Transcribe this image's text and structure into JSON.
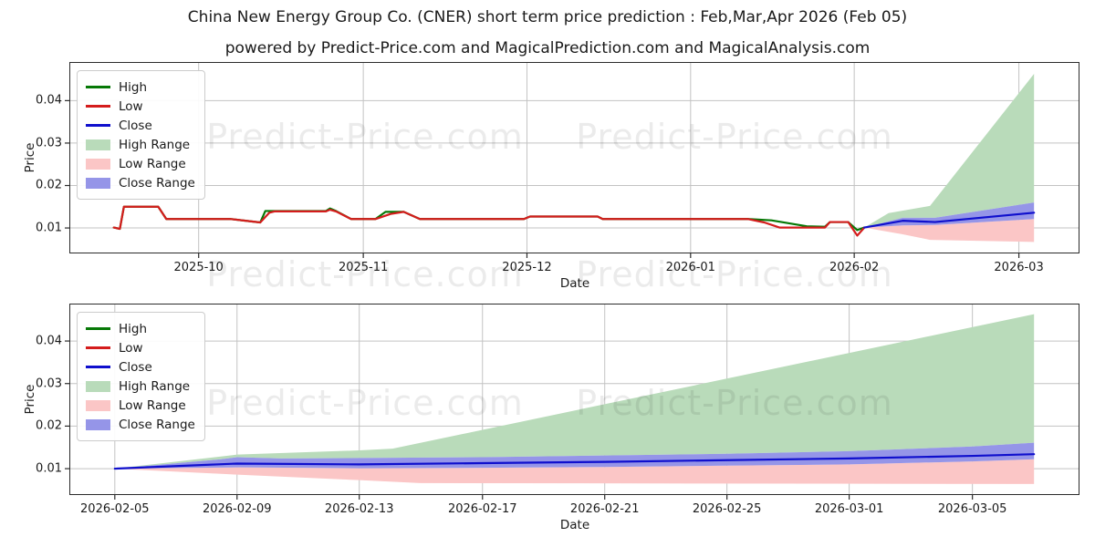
{
  "header": {
    "title": "China New Energy Group Co. (CNER) short term price prediction : Feb,Mar,Apr 2026 (Feb 05)",
    "subtitle": "powered by Predict-Price.com and MagicalPrediction.com and MagicalAnalysis.com"
  },
  "watermark": {
    "text": "Predict-Price.com"
  },
  "colors": {
    "line_green": "#067806",
    "line_red": "#d41c1c",
    "line_blue": "#0f0fcd",
    "band_green": "#b9dbba",
    "band_pink": "#fbc6c6",
    "band_blue": "#9595e8",
    "grid": "#c3c3c3",
    "axis": "#2b2b2b"
  },
  "legend": {
    "items": [
      {
        "label": "High",
        "swatch": "line",
        "color_key": "line_green"
      },
      {
        "label": "Low",
        "swatch": "line",
        "color_key": "line_red"
      },
      {
        "label": "Close",
        "swatch": "line",
        "color_key": "line_blue"
      },
      {
        "label": "High Range",
        "swatch": "patch",
        "color_key": "band_green"
      },
      {
        "label": "Low Range",
        "swatch": "patch",
        "color_key": "band_pink"
      },
      {
        "label": "Close Range",
        "swatch": "patch",
        "color_key": "band_blue"
      }
    ]
  },
  "chart_data": [
    {
      "type": "line",
      "name": "history-and-prediction",
      "xlabel": "Date",
      "ylabel": "Price",
      "ylim": [
        0.004,
        0.0491
      ],
      "grid": true,
      "legend_position": "upper-left",
      "yticks": [
        {
          "label": "0.01",
          "v": 0.01
        },
        {
          "label": "0.02",
          "v": 0.02
        },
        {
          "label": "0.03",
          "v": 0.03
        },
        {
          "label": "0.04",
          "v": 0.04
        }
      ],
      "xticks": [
        {
          "label": "2025-10",
          "f": 0.128
        },
        {
          "label": "2025-11",
          "f": 0.291
        },
        {
          "label": "2025-12",
          "f": 0.453
        },
        {
          "label": "2026-01",
          "f": 0.615
        },
        {
          "label": "2026-02",
          "f": 0.777
        },
        {
          "label": "2026-03",
          "f": 0.94
        }
      ],
      "points": {
        "high": [
          [
            0.044,
            0.0101
          ],
          [
            0.05,
            0.0098
          ],
          [
            0.054,
            0.015
          ],
          [
            0.088,
            0.015
          ],
          [
            0.096,
            0.0121
          ],
          [
            0.16,
            0.0121
          ],
          [
            0.189,
            0.0113
          ],
          [
            0.194,
            0.014
          ],
          [
            0.254,
            0.014
          ],
          [
            0.258,
            0.0146
          ],
          [
            0.264,
            0.014
          ],
          [
            0.279,
            0.0121
          ],
          [
            0.303,
            0.0121
          ],
          [
            0.313,
            0.0138
          ],
          [
            0.331,
            0.0138
          ],
          [
            0.347,
            0.0121
          ],
          [
            0.45,
            0.0121
          ],
          [
            0.456,
            0.0127
          ],
          [
            0.523,
            0.0127
          ],
          [
            0.528,
            0.0121
          ],
          [
            0.672,
            0.0121
          ],
          [
            0.695,
            0.0118
          ],
          [
            0.73,
            0.0104
          ],
          [
            0.748,
            0.0103
          ],
          [
            0.753,
            0.0114
          ],
          [
            0.771,
            0.0114
          ],
          [
            0.78,
            0.0095
          ],
          [
            0.787,
            0.0101
          ]
        ],
        "low": [
          [
            0.044,
            0.0101
          ],
          [
            0.05,
            0.0098
          ],
          [
            0.054,
            0.015
          ],
          [
            0.088,
            0.015
          ],
          [
            0.096,
            0.0121
          ],
          [
            0.16,
            0.0121
          ],
          [
            0.189,
            0.0113
          ],
          [
            0.198,
            0.0136
          ],
          [
            0.203,
            0.0139
          ],
          [
            0.254,
            0.0139
          ],
          [
            0.258,
            0.0143
          ],
          [
            0.264,
            0.0139
          ],
          [
            0.279,
            0.0121
          ],
          [
            0.303,
            0.0121
          ],
          [
            0.318,
            0.0133
          ],
          [
            0.331,
            0.0138
          ],
          [
            0.347,
            0.0121
          ],
          [
            0.45,
            0.0121
          ],
          [
            0.456,
            0.0127
          ],
          [
            0.523,
            0.0127
          ],
          [
            0.528,
            0.0121
          ],
          [
            0.672,
            0.0121
          ],
          [
            0.688,
            0.0113
          ],
          [
            0.703,
            0.0101
          ],
          [
            0.748,
            0.0101
          ],
          [
            0.753,
            0.0114
          ],
          [
            0.771,
            0.0114
          ],
          [
            0.78,
            0.0082
          ],
          [
            0.787,
            0.0101
          ]
        ],
        "close": [
          [
            0.787,
            0.0101
          ],
          [
            0.825,
            0.0117
          ],
          [
            0.857,
            0.0114
          ],
          [
            0.955,
            0.0136
          ]
        ],
        "high_top": [
          [
            0.787,
            0.0101
          ],
          [
            0.811,
            0.0135
          ],
          [
            0.852,
            0.0152
          ],
          [
            0.955,
            0.0463
          ]
        ],
        "close_hi": [
          [
            0.787,
            0.0101
          ],
          [
            0.825,
            0.0124
          ],
          [
            0.857,
            0.0124
          ],
          [
            0.955,
            0.016
          ]
        ],
        "close_lo": [
          [
            0.787,
            0.0101
          ],
          [
            0.825,
            0.0106
          ],
          [
            0.857,
            0.0107
          ],
          [
            0.955,
            0.0121
          ]
        ],
        "low_bot": [
          [
            0.787,
            0.0101
          ],
          [
            0.825,
            0.0085
          ],
          [
            0.852,
            0.0072
          ],
          [
            0.955,
            0.0067
          ]
        ]
      },
      "bands": [
        {
          "name": "high-range",
          "color_key": "band_green",
          "top": "high_top",
          "bottom": "close_hi"
        },
        {
          "name": "low-range",
          "color_key": "band_pink",
          "top": "close_lo",
          "bottom": "low_bot"
        },
        {
          "name": "close-range",
          "color_key": "band_blue",
          "top": "close_hi",
          "bottom": "close_lo"
        }
      ],
      "lines": [
        {
          "name": "high",
          "color_key": "line_green",
          "points": "high"
        },
        {
          "name": "low",
          "color_key": "line_red",
          "points": "low"
        },
        {
          "name": "close",
          "color_key": "line_blue",
          "points": "close"
        }
      ]
    },
    {
      "type": "line",
      "name": "prediction-detail",
      "xlabel": "Date",
      "ylabel": "Price",
      "ylim": [
        0.0038,
        0.0488
      ],
      "grid": true,
      "legend_position": "upper-left",
      "yticks": [
        {
          "label": "0.01",
          "v": 0.01
        },
        {
          "label": "0.02",
          "v": 0.02
        },
        {
          "label": "0.03",
          "v": 0.03
        },
        {
          "label": "0.04",
          "v": 0.04
        }
      ],
      "xticks": [
        {
          "label": "2026-02-05",
          "f": 0.045
        },
        {
          "label": "2026-02-09",
          "f": 0.166
        },
        {
          "label": "2026-02-13",
          "f": 0.287
        },
        {
          "label": "2026-02-17",
          "f": 0.409
        },
        {
          "label": "2026-02-21",
          "f": 0.53
        },
        {
          "label": "2026-02-25",
          "f": 0.651
        },
        {
          "label": "2026-03-01",
          "f": 0.772
        },
        {
          "label": "2026-03-05",
          "f": 0.894
        }
      ],
      "points": {
        "close": [
          [
            0.045,
            0.01
          ],
          [
            0.166,
            0.0112
          ],
          [
            0.287,
            0.011
          ],
          [
            0.409,
            0.0113
          ],
          [
            0.53,
            0.0116
          ],
          [
            0.651,
            0.012
          ],
          [
            0.772,
            0.0124
          ],
          [
            0.894,
            0.013
          ],
          [
            0.955,
            0.0134
          ]
        ],
        "high_top": [
          [
            0.045,
            0.01
          ],
          [
            0.166,
            0.0133
          ],
          [
            0.287,
            0.0143
          ],
          [
            0.32,
            0.0147
          ],
          [
            0.955,
            0.0463
          ]
        ],
        "close_hi": [
          [
            0.045,
            0.01
          ],
          [
            0.15,
            0.0122
          ],
          [
            0.166,
            0.0127
          ],
          [
            0.21,
            0.0124
          ],
          [
            0.287,
            0.0125
          ],
          [
            0.409,
            0.0127
          ],
          [
            0.53,
            0.0131
          ],
          [
            0.651,
            0.0135
          ],
          [
            0.772,
            0.0141
          ],
          [
            0.894,
            0.0152
          ],
          [
            0.955,
            0.0161
          ]
        ],
        "close_lo": [
          [
            0.045,
            0.01
          ],
          [
            0.166,
            0.0103
          ],
          [
            0.287,
            0.0101
          ],
          [
            0.409,
            0.0102
          ],
          [
            0.53,
            0.0104
          ],
          [
            0.651,
            0.0107
          ],
          [
            0.772,
            0.011
          ],
          [
            0.894,
            0.0117
          ],
          [
            0.955,
            0.0122
          ]
        ],
        "low_bot": [
          [
            0.045,
            0.01
          ],
          [
            0.166,
            0.0086
          ],
          [
            0.287,
            0.0073
          ],
          [
            0.347,
            0.0066
          ],
          [
            0.955,
            0.0064
          ]
        ]
      },
      "bands": [
        {
          "name": "high-range",
          "color_key": "band_green",
          "top": "high_top",
          "bottom": "close_hi"
        },
        {
          "name": "low-range",
          "color_key": "band_pink",
          "top": "close_lo",
          "bottom": "low_bot"
        },
        {
          "name": "close-range",
          "color_key": "band_blue",
          "top": "close_hi",
          "bottom": "close_lo"
        }
      ],
      "lines": [
        {
          "name": "close",
          "color_key": "line_blue",
          "points": "close"
        }
      ]
    }
  ]
}
